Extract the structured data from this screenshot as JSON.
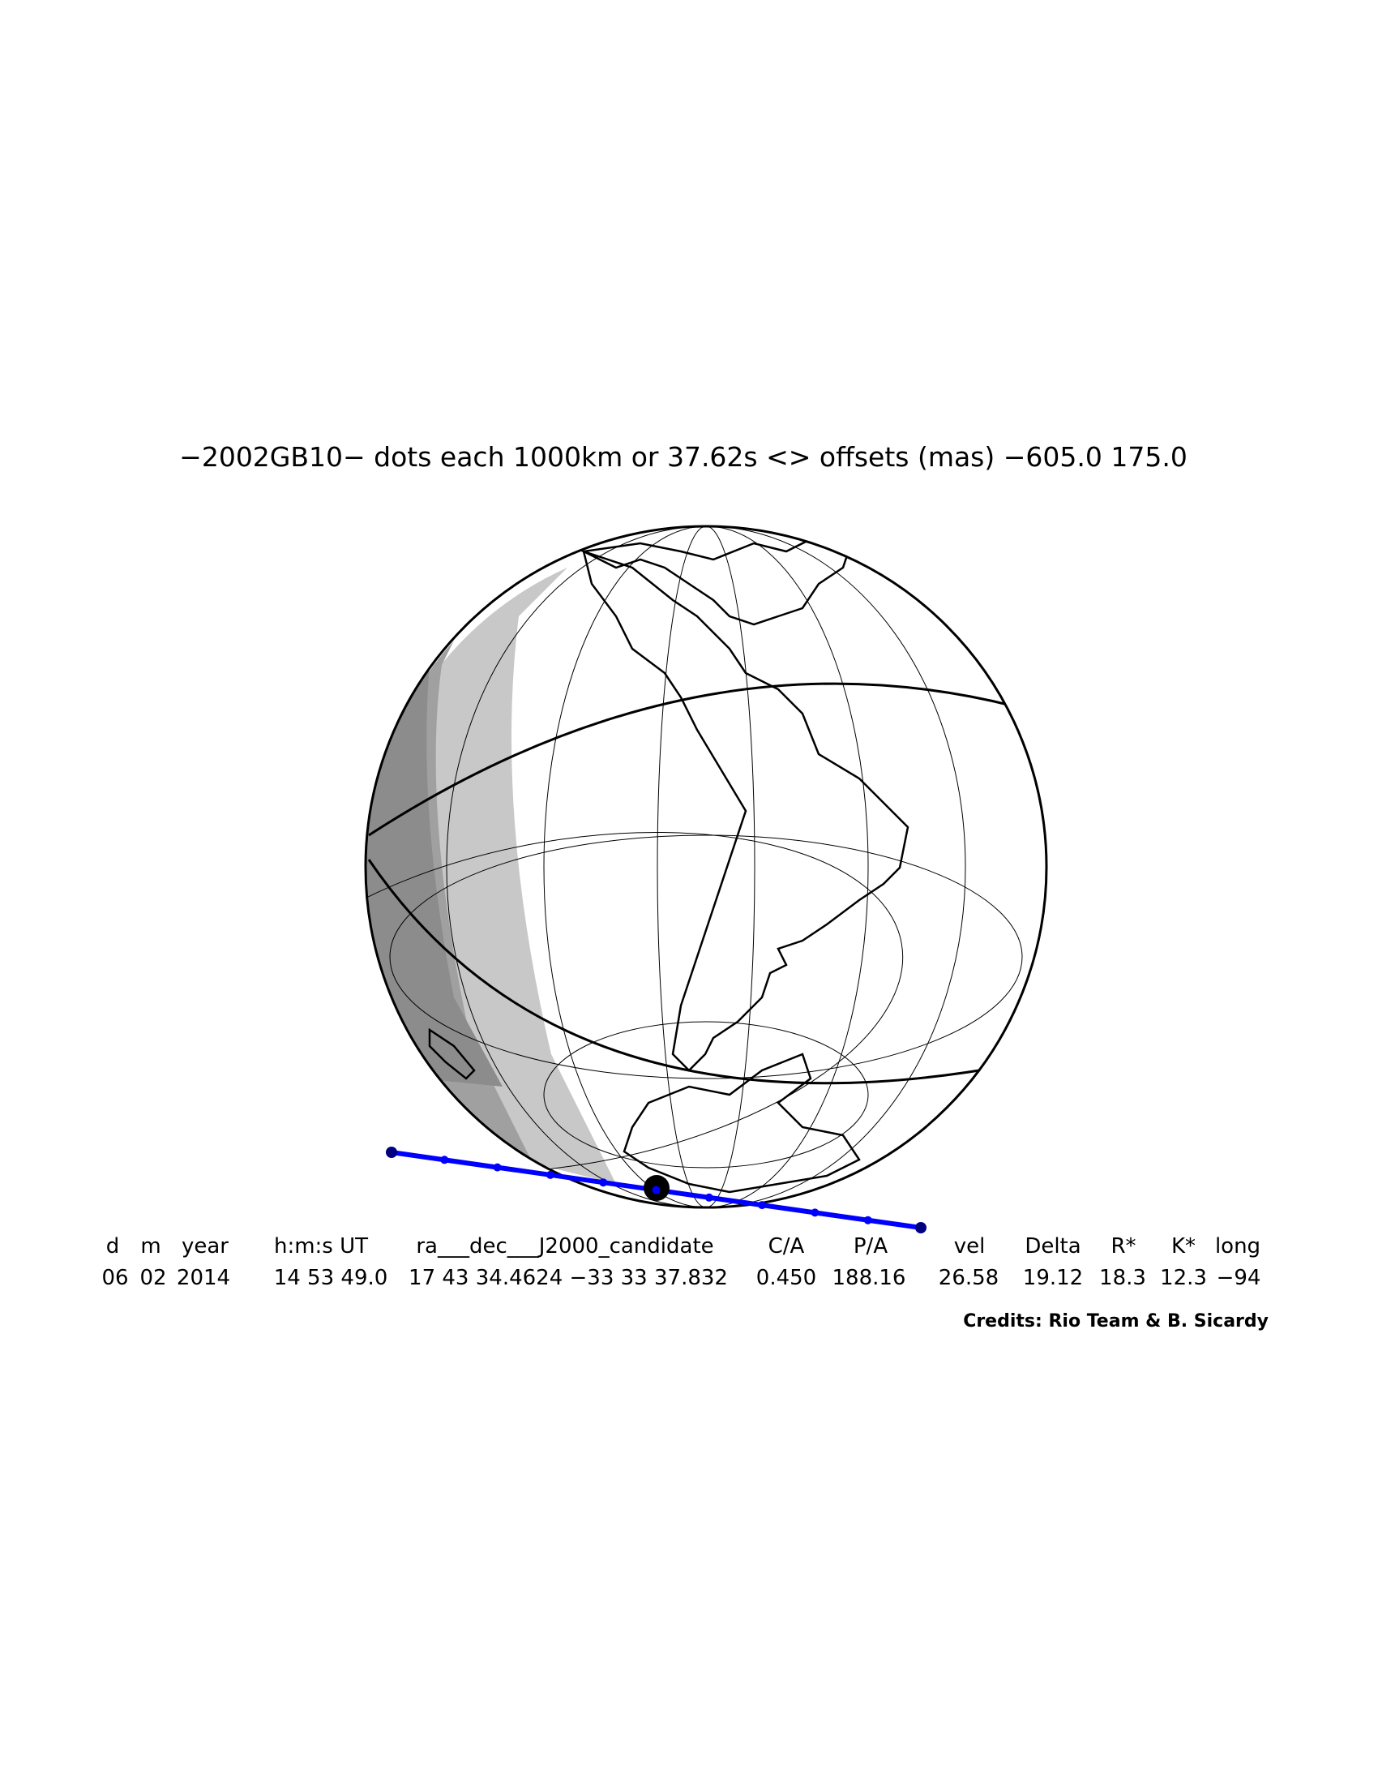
{
  "title": "−2002GB10− dots each 1000km or 37.62s <> offsets (mas) −605.0  175.0",
  "table": {
    "header": [
      "d",
      "m",
      "year",
      "h:m:s UT",
      "ra___dec___J2000_candidate",
      "C/A",
      "P/A",
      "vel",
      "Delta",
      "R*",
      "K*",
      "long"
    ],
    "rows": [
      [
        "06",
        "02",
        "2014",
        "14 53 49.0",
        "17 43 34.4624 −33 33 37.832",
        "0.450",
        "188.16",
        "26.58",
        "19.12",
        "18.3",
        "12.3",
        "−94"
      ]
    ]
  },
  "credits": "Credits: Rio Team & B. Sicardy"
}
